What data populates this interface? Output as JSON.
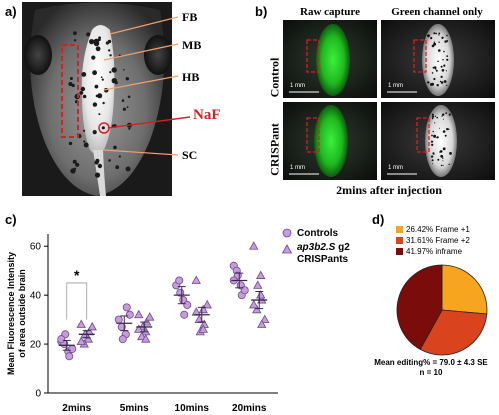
{
  "panel_a": {
    "label": "a)",
    "annotations": [
      {
        "key": "fb",
        "text": "FB"
      },
      {
        "key": "mb",
        "text": "MB"
      },
      {
        "key": "hb",
        "text": "HB"
      },
      {
        "key": "naf",
        "text": "NaF"
      },
      {
        "key": "sc",
        "text": "SC"
      }
    ],
    "annotation_color": "#f3a06a",
    "naf_color": "#d62020"
  },
  "panel_b": {
    "label": "b)",
    "col_headers": [
      "Raw capture",
      "Green channel only"
    ],
    "row_labels": [
      "Control",
      "CRISPant"
    ],
    "scale_bar": "1 mm",
    "caption": "2mins after injection",
    "green": "#25d12a"
  },
  "panel_c": {
    "label": "c)",
    "significance": "*",
    "legend": [
      {
        "marker": "circle",
        "text": "Controls"
      },
      {
        "marker": "triangle",
        "text_italic": "ap3b2.S",
        "text_rest": " g2",
        "text_line2": "CRISPants"
      }
    ],
    "marker_color": "#c89be0",
    "chart_data": {
      "type": "scatter",
      "categories": [
        "2mins",
        "5mins",
        "10mins",
        "20mins"
      ],
      "ylabel": "Mean Fluorescence Intensity of area outside brain",
      "ylabel_lines": [
        "Mean Fluorescence Intensity",
        "of area outside brain"
      ],
      "yticks": [
        0,
        20,
        40,
        60
      ],
      "ylim": [
        0,
        65
      ],
      "series": [
        {
          "name": "Controls",
          "marker": "circle",
          "mean": [
            19.5,
            28.5,
            40.0,
            46.0
          ],
          "sem": [
            2.0,
            3.0,
            3.5,
            3.0
          ],
          "points": [
            [
              21,
              17,
              15,
              20,
              24,
              18,
              22
            ],
            [
              30,
              24,
              35,
              27,
              22,
              32
            ],
            [
              44,
              38,
              32,
              46,
              41,
              36
            ],
            [
              52,
              44,
              40,
              50,
              48,
              42,
              46
            ]
          ]
        },
        {
          "name": "ap3b2.S g2 CRISPants",
          "marker": "triangle",
          "mean": [
            24.0,
            27.0,
            32.0,
            38.0
          ],
          "sem": [
            1.5,
            2.0,
            3.0,
            3.5
          ],
          "points": [
            [
              28,
              22,
              25,
              20,
              24,
              27,
              21
            ],
            [
              32,
              25,
              29,
              23,
              27,
              31,
              26,
              22
            ],
            [
              46,
              34,
              28,
              30,
              25,
              36,
              33,
              26
            ],
            [
              60,
              48,
              38,
              34,
              44,
              30,
              36,
              40,
              28
            ]
          ]
        }
      ]
    }
  },
  "panel_d": {
    "label": "d)",
    "legend": [
      {
        "text": "26.42% Frame +1",
        "color": "#f7a51e"
      },
      {
        "text": "31.61% Frame +2",
        "color": "#d9441e"
      },
      {
        "text": "41.97% inframe",
        "color": "#7a0c0c"
      }
    ],
    "footer_line1": "Mean editing% = 79.0 ± 4.3 SE",
    "footer_line2": "n = 10",
    "chart_data": {
      "type": "pie",
      "labels": [
        "Frame +1",
        "Frame +2",
        "inframe"
      ],
      "values": [
        26.42,
        31.61,
        41.97
      ],
      "colors": [
        "#f7a51e",
        "#d9441e",
        "#7a0c0c"
      ]
    }
  }
}
